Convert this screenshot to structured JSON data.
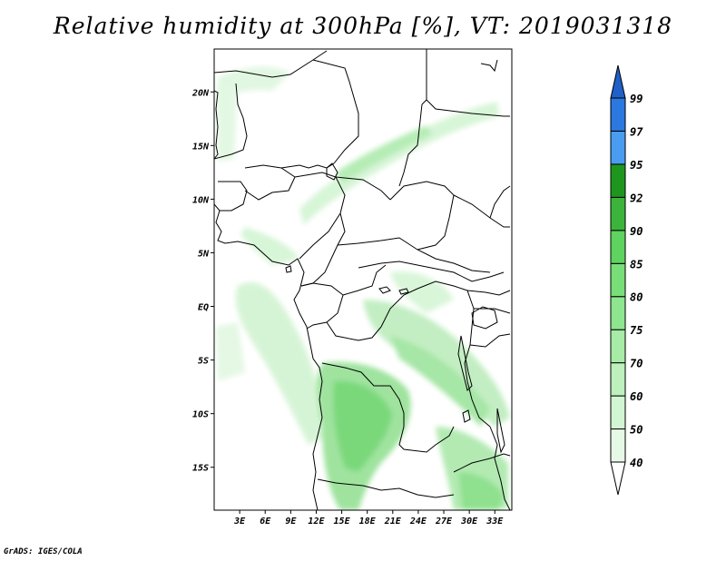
{
  "title": "Relative humidity at 300hPa [%], VT: 2019031318",
  "credit": "GrADS: IGES/COLA",
  "map": {
    "lon_range": [
      0,
      35
    ],
    "lat_range": [
      -19,
      24
    ],
    "lon_ticks": [
      {
        "value": 3,
        "label": "3E"
      },
      {
        "value": 6,
        "label": "6E"
      },
      {
        "value": 9,
        "label": "9E"
      },
      {
        "value": 12,
        "label": "12E"
      },
      {
        "value": 15,
        "label": "15E"
      },
      {
        "value": 18,
        "label": "18E"
      },
      {
        "value": 21,
        "label": "21E"
      },
      {
        "value": 24,
        "label": "24E"
      },
      {
        "value": 27,
        "label": "27E"
      },
      {
        "value": 30,
        "label": "30E"
      },
      {
        "value": 33,
        "label": "33E"
      }
    ],
    "lat_ticks": [
      {
        "value": 20,
        "label": "20N"
      },
      {
        "value": 15,
        "label": "15N"
      },
      {
        "value": 10,
        "label": "10N"
      },
      {
        "value": 5,
        "label": "5N"
      },
      {
        "value": 0,
        "label": "EQ"
      },
      {
        "value": -5,
        "label": "5S"
      },
      {
        "value": -10,
        "label": "10S"
      },
      {
        "value": -15,
        "label": "15S"
      }
    ]
  },
  "colorbar": {
    "levels": [
      "40",
      "50",
      "60",
      "70",
      "75",
      "80",
      "85",
      "90",
      "92",
      "95",
      "97",
      "99"
    ],
    "colors": [
      "#e6f9e6",
      "#d2f5d2",
      "#bdf0bd",
      "#a6eba6",
      "#8ee68e",
      "#78df78",
      "#5fd35f",
      "#3cb43c",
      "#1e961e",
      "#4a9cf0",
      "#2a78e0",
      "#1a5cc8"
    ],
    "under_color": "#ffffff",
    "over_color": "#2060c8"
  }
}
